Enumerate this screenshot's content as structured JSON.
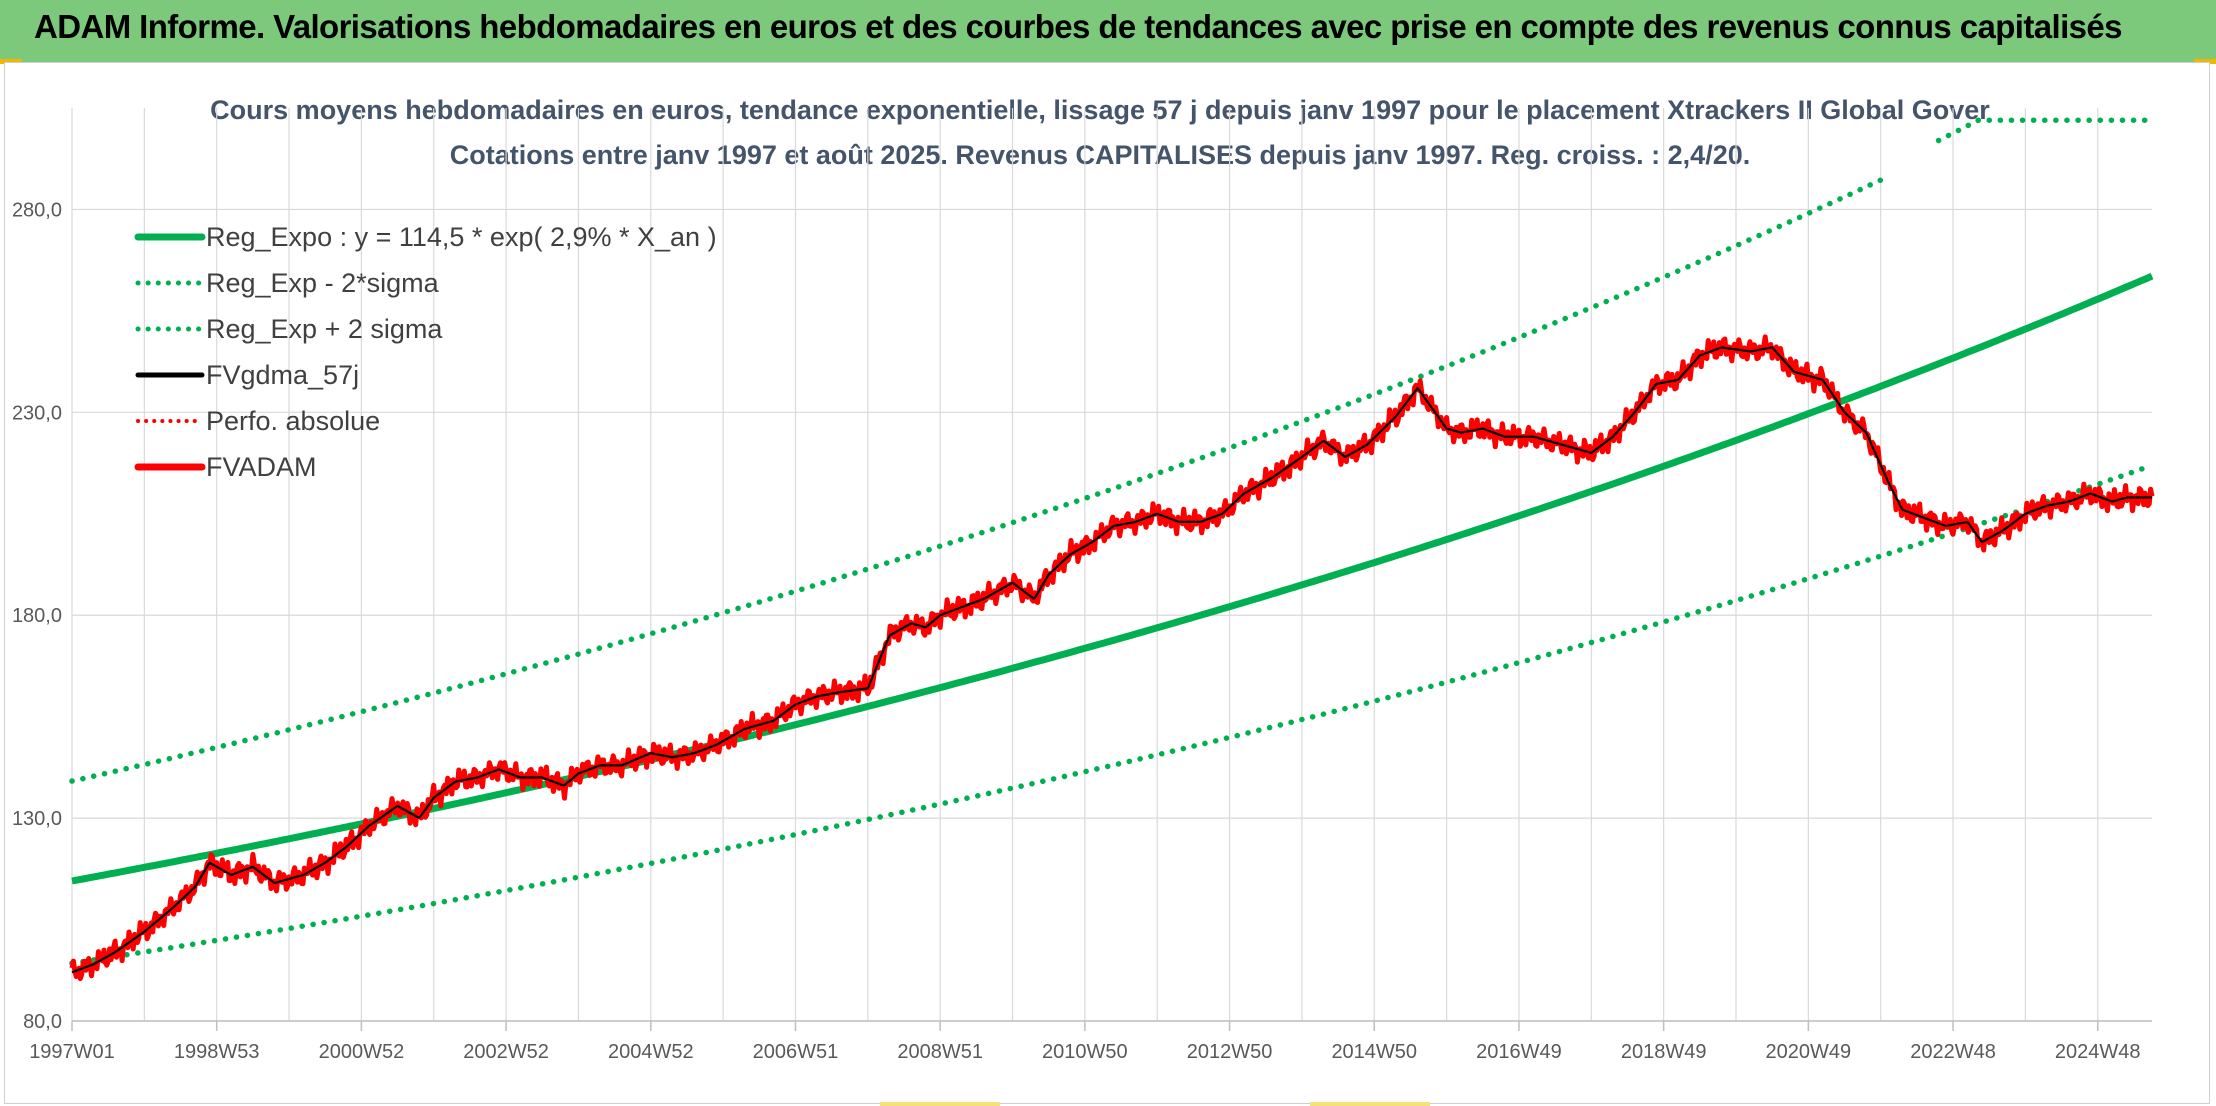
{
  "banner": {
    "title": "ADAM Informe. Valorisations hebdomadaires en euros et des courbes de tendances avec prise en compte des revenus connus capitalisés"
  },
  "colors": {
    "banner": "#7dc97b",
    "regression": "#00b050",
    "fvgdma": "#000000",
    "fvadam": "#ff0000",
    "grid": "#d9d9d9"
  },
  "chart_data": {
    "type": "line",
    "title": "Cours moyens hebdomadaires en euros, tendance exponentielle, lissage 57 j depuis janv 1997 pour le placement Xtrackers II Global Gover",
    "subtitle": "Cotations entre janv 1997 et août 2025. Revenus CAPITALISES depuis janv 1997. Reg. croiss. : 2,4/20.",
    "xlabel": "",
    "ylabel": "",
    "ylim": [
      80,
      305
    ],
    "yticks": [
      "80,0",
      "130,0",
      "180,0",
      "230,0",
      "280,0"
    ],
    "ytick_values": [
      80,
      130,
      180,
      230,
      280
    ],
    "xticks": [
      "1997W01",
      "1998W53",
      "2000W52",
      "2002W52",
      "2004W52",
      "2006W51",
      "2008W51",
      "2010W50",
      "2012W50",
      "2014W50",
      "2016W49",
      "2018W49",
      "2020W49",
      "2022W48",
      "2024W48"
    ],
    "xtick_years": [
      1997.0,
      1999.0,
      2001.0,
      2003.0,
      2005.0,
      2007.0,
      2009.0,
      2011.0,
      2013.0,
      2015.0,
      2017.0,
      2019.0,
      2021.0,
      2023.0,
      2025.0
    ],
    "xlim_years": [
      1997.0,
      2025.75
    ],
    "grid": true,
    "legend_position": "top-left",
    "regression": {
      "a": 114.5,
      "rate": 0.029,
      "sigma_factor": 1.215
    },
    "series": [
      {
        "name": "Reg_Expo : y = 114,5 * exp( 2,9% *  X_an )",
        "style": "solid-green-thick",
        "kind": "reg"
      },
      {
        "name": "Reg_Exp - 2*sigma",
        "style": "dotted-green",
        "kind": "reg_low"
      },
      {
        "name": "Reg_Exp + 2 sigma",
        "style": "dotted-green",
        "kind": "reg_high"
      },
      {
        "name": "FVgdma_57j",
        "style": "solid-black",
        "kind": "smooth"
      },
      {
        "name": "Perfo. absolue",
        "style": "dotted-red",
        "kind": "none"
      },
      {
        "name": "FVADAM",
        "style": "solid-red-thick",
        "kind": "price",
        "x": [
          1997.0,
          1997.3,
          1997.6,
          1998.0,
          1998.4,
          1998.7,
          1998.9,
          1999.2,
          1999.5,
          1999.8,
          2000.2,
          2000.5,
          2000.8,
          2001.1,
          2001.5,
          2001.8,
          2002.0,
          2002.3,
          2002.6,
          2002.9,
          2003.2,
          2003.5,
          2003.8,
          2004.0,
          2004.3,
          2004.6,
          2005.0,
          2005.3,
          2005.6,
          2005.9,
          2006.3,
          2006.7,
          2007.0,
          2007.3,
          2007.6,
          2008.0,
          2008.3,
          2008.6,
          2008.8,
          2009.0,
          2009.3,
          2009.6,
          2010.0,
          2010.3,
          2010.5,
          2010.8,
          2011.1,
          2011.4,
          2011.7,
          2012.0,
          2012.3,
          2012.6,
          2012.9,
          2013.2,
          2013.6,
          2014.0,
          2014.3,
          2014.6,
          2014.9,
          2015.3,
          2015.6,
          2016.0,
          2016.2,
          2016.5,
          2016.8,
          2017.2,
          2017.6,
          2018.0,
          2018.3,
          2018.6,
          2018.9,
          2019.2,
          2019.5,
          2019.8,
          2020.2,
          2020.5,
          2020.8,
          2021.2,
          2021.5,
          2021.8,
          2022.1,
          2022.3,
          2022.6,
          2022.9,
          2023.2,
          2023.4,
          2023.7,
          2024.0,
          2024.3,
          2024.6,
          2024.9,
          2025.2,
          2025.4,
          2025.7
        ],
        "y": [
          92,
          94,
          97,
          102,
          108,
          113,
          119,
          116,
          118,
          114,
          116,
          119,
          123,
          128,
          133,
          130,
          135,
          139,
          140,
          142,
          140,
          140,
          138,
          141,
          143,
          143,
          146,
          145,
          146,
          148,
          152,
          154,
          158,
          160,
          161,
          162,
          175,
          178,
          177,
          180,
          182,
          184,
          188,
          184,
          190,
          195,
          198,
          202,
          203,
          205,
          203,
          203,
          205,
          210,
          214,
          219,
          223,
          219,
          222,
          229,
          236,
          226,
          225,
          226,
          224,
          224,
          222,
          220,
          224,
          230,
          237,
          238,
          244,
          246,
          245,
          246,
          240,
          238,
          230,
          225,
          213,
          206,
          204,
          202,
          203,
          198,
          201,
          205,
          207,
          208,
          210,
          208,
          209,
          209
        ]
      }
    ]
  }
}
